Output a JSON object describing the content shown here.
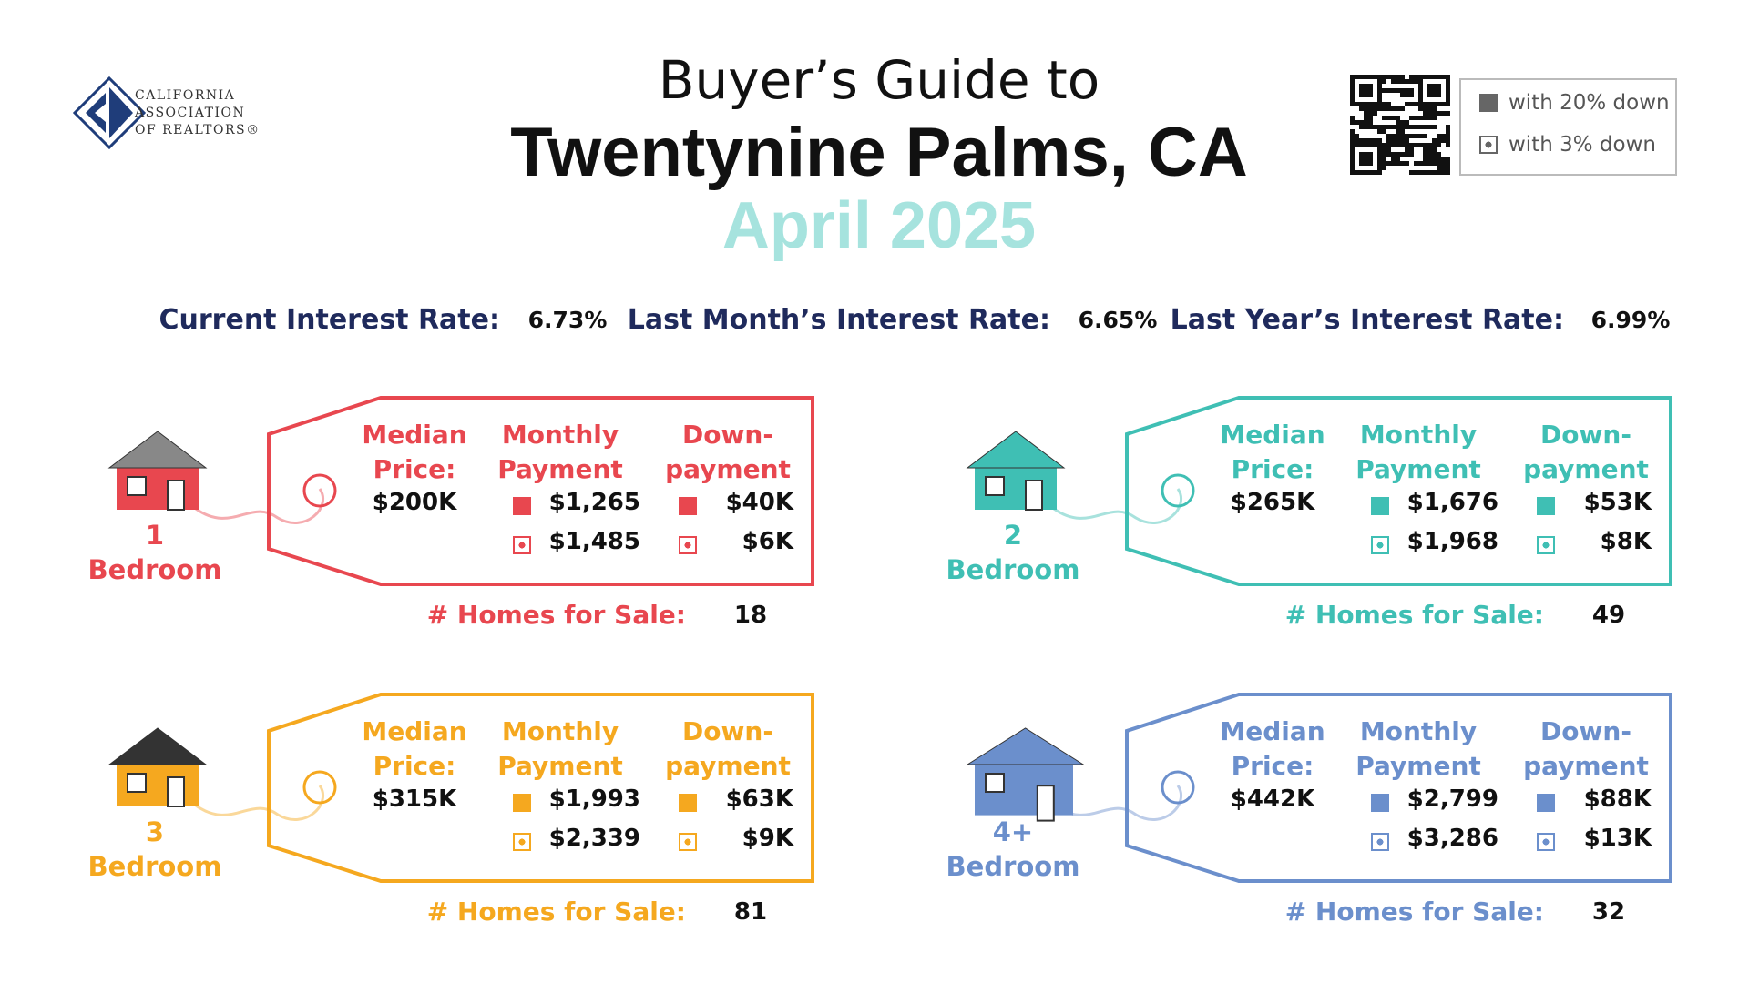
{
  "logo": {
    "lines": [
      "CALIFORNIA",
      "ASSOCIATION",
      "OF REALTORS®"
    ]
  },
  "header": {
    "line1": "Buyer’s Guide to",
    "line2": "Twentynine Palms, CA",
    "date": "April 2025"
  },
  "legend": [
    "with 20% down",
    "with 3% down"
  ],
  "rates": [
    {
      "label": "Current Interest Rate:",
      "value": "6.73%"
    },
    {
      "label": "Last Month’s Interest Rate:",
      "value": "6.65%"
    },
    {
      "label": "Last Year’s Interest Rate:",
      "value": "6.99%"
    }
  ],
  "cards": [
    {
      "size": "1",
      "unit": "Bedroom",
      "color": "#e8474f",
      "headers": [
        [
          "Median",
          "Price:"
        ],
        [
          "Monthly",
          "Payment"
        ],
        [
          "Down-",
          "payment"
        ]
      ],
      "median": "$200K",
      "monthly": [
        "$1,265",
        "$1,485"
      ],
      "down": [
        "$40K",
        "$6K"
      ],
      "homes_label": "# Homes for Sale:",
      "homes": "18"
    },
    {
      "size": "2",
      "unit": "Bedroom",
      "color": "#3fbfb4",
      "headers": [
        [
          "Median",
          "Price:"
        ],
        [
          "Monthly",
          "Payment"
        ],
        [
          "Down-",
          "payment"
        ]
      ],
      "median": "$265K",
      "monthly": [
        "$1,676",
        "$1,968"
      ],
      "down": [
        "$53K",
        "$8K"
      ],
      "homes_label": "# Homes for Sale:",
      "homes": "49"
    },
    {
      "size": "3",
      "unit": "Bedroom",
      "color": "#f5a81f",
      "headers": [
        [
          "Median",
          "Price:"
        ],
        [
          "Monthly",
          "Payment"
        ],
        [
          "Down-",
          "payment"
        ]
      ],
      "median": "$315K",
      "monthly": [
        "$1,993",
        "$2,339"
      ],
      "down": [
        "$63K",
        "$9K"
      ],
      "homes_label": "# Homes for Sale:",
      "homes": "81"
    },
    {
      "size": "4+",
      "unit": "Bedroom",
      "color": "#6b8fcc",
      "headers": [
        [
          "Median",
          "Price:"
        ],
        [
          "Monthly",
          "Payment"
        ],
        [
          "Down-",
          "payment"
        ]
      ],
      "median": "$442K",
      "monthly": [
        "$2,799",
        "$3,286"
      ],
      "down": [
        "$88K",
        "$13K"
      ],
      "homes_label": "# Homes for Sale:",
      "homes": "32"
    }
  ]
}
